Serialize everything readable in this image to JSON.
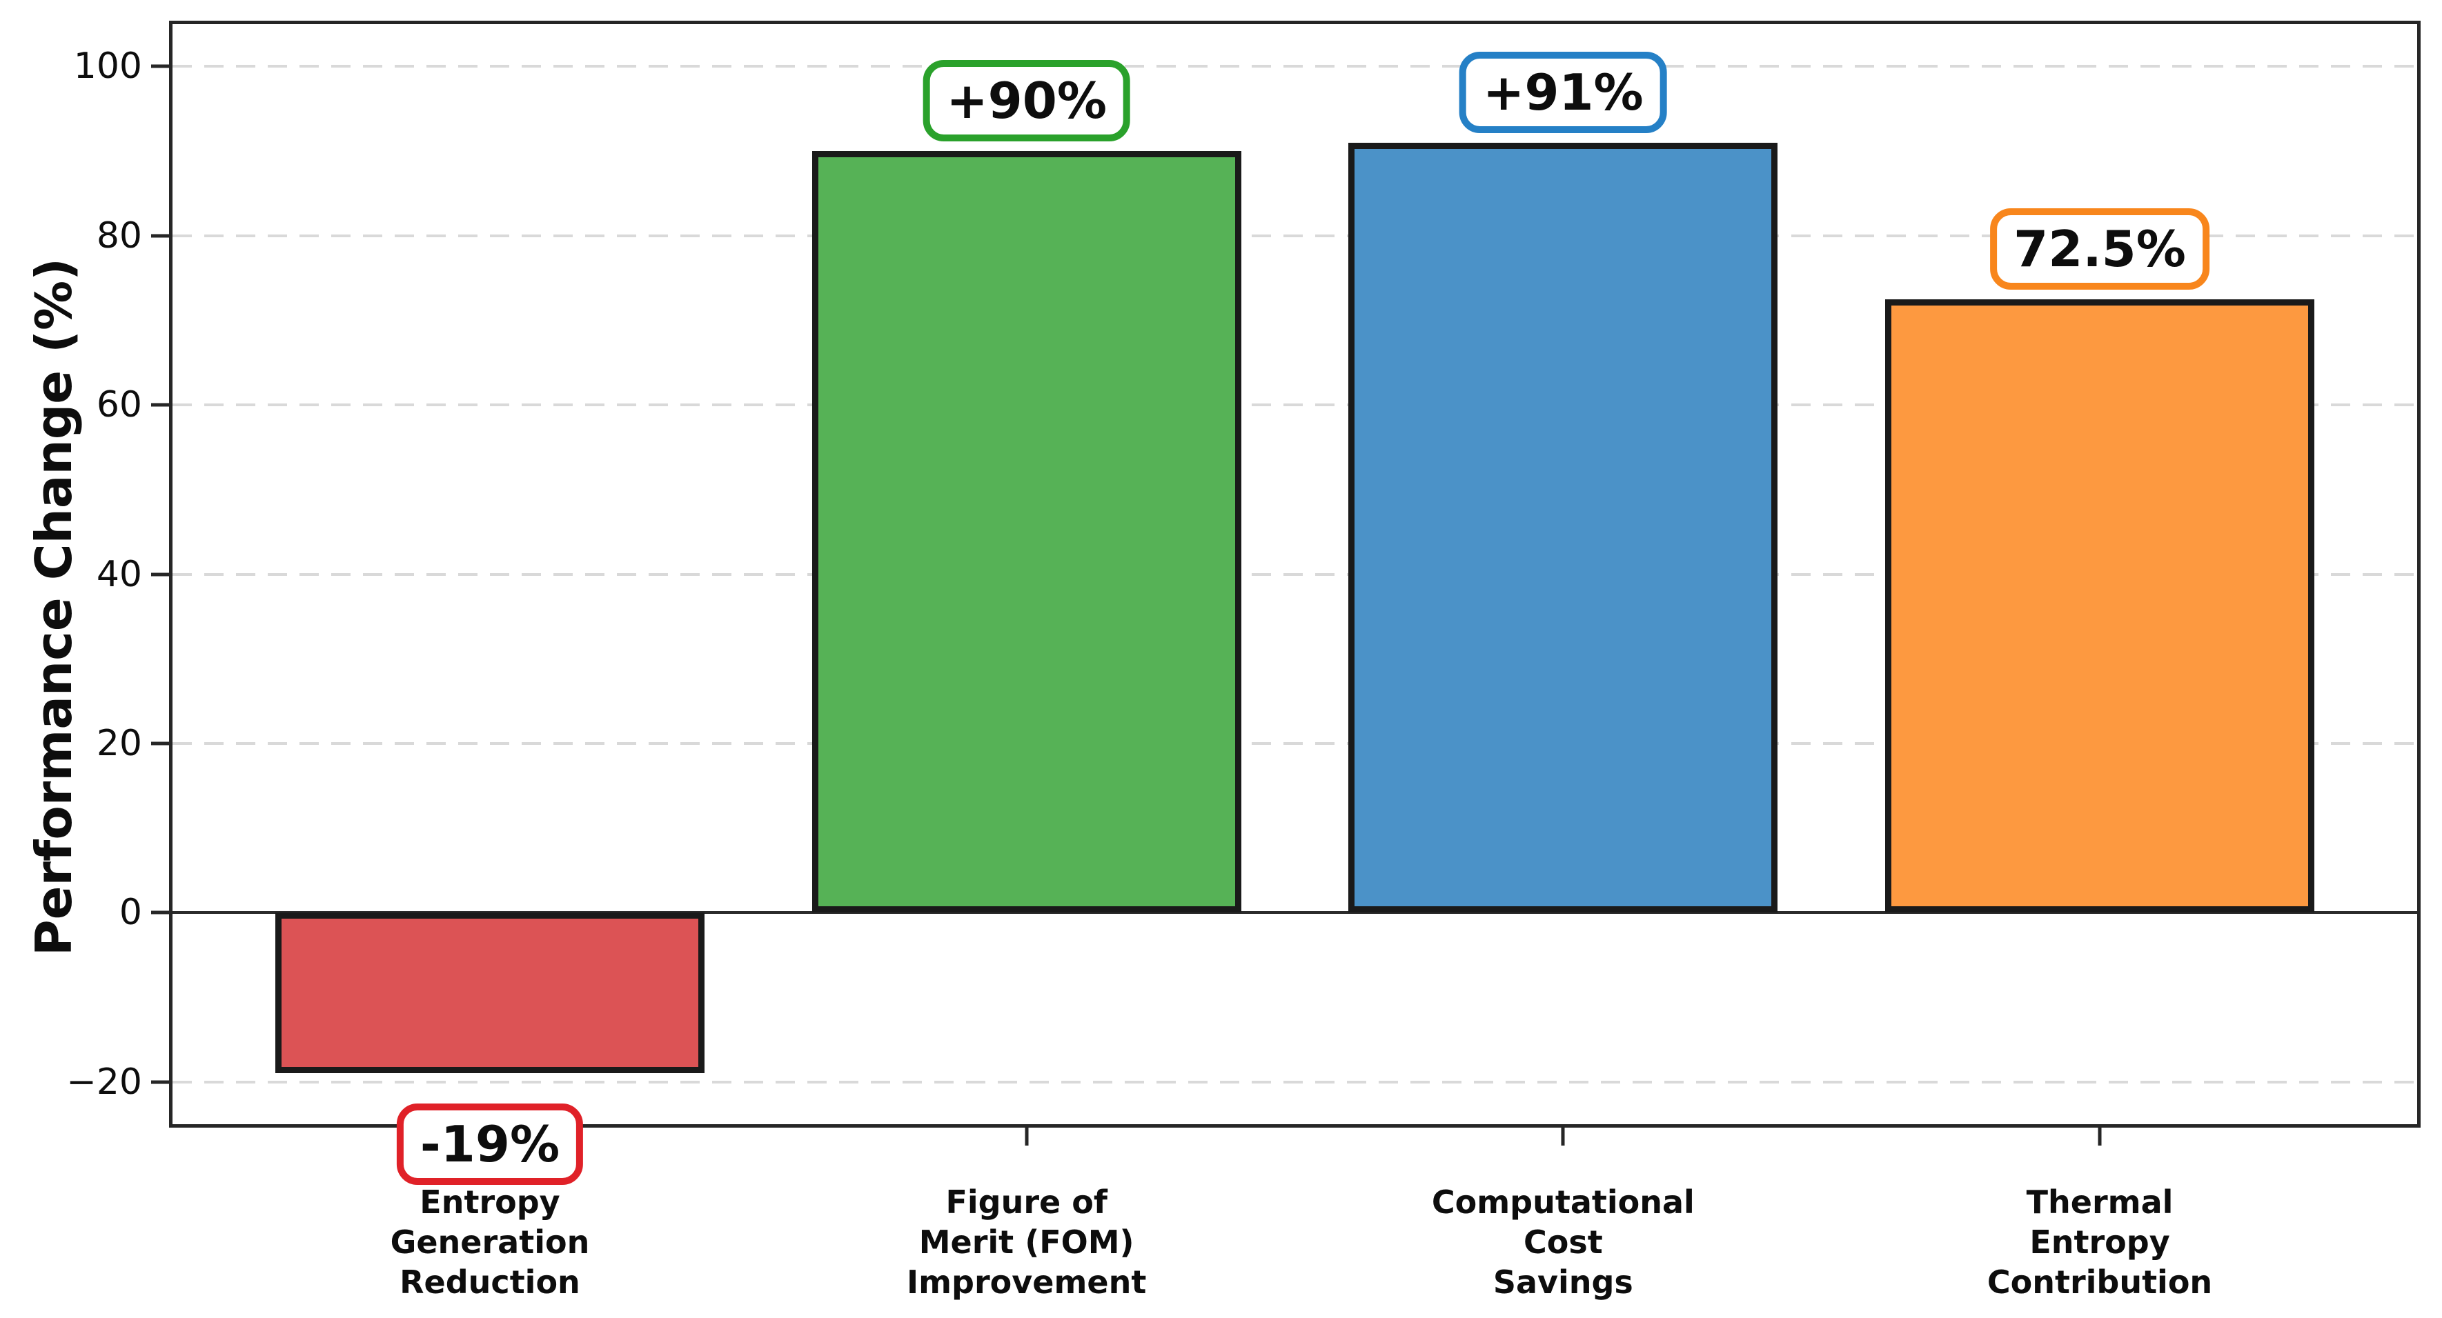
{
  "chart_data": {
    "type": "bar",
    "title": "",
    "xlabel": "",
    "ylabel": "Performance Change (%)",
    "ylim": [
      -25,
      105
    ],
    "yticks": [
      -20,
      0,
      20,
      40,
      60,
      80,
      100
    ],
    "ytick_labels": [
      "−20",
      "0",
      "20",
      "40",
      "60",
      "80",
      "100"
    ],
    "grid": "horizontal-dashed",
    "grid_color": "#d9d9d9",
    "zero_line": true,
    "legend": "none",
    "categories": [
      "Entropy\nGeneration\nReduction",
      "Figure of\nMerit (FOM)\nImprovement",
      "Computational\nCost\nSavings",
      "Thermal\nEntropy\nContribution"
    ],
    "values": [
      -19,
      90,
      91,
      72.5
    ],
    "bar_labels": [
      "-19%",
      "+90%",
      "+91%",
      "72.5%"
    ],
    "bar_colors": [
      "#dc5355",
      "#56b256",
      "#4b92c8",
      "#fd9940"
    ],
    "label_box_colors": [
      "#e02128",
      "#2aa12b",
      "#2580c6",
      "#f8861c"
    ],
    "bar_edge_color": "#1a1a1a"
  }
}
